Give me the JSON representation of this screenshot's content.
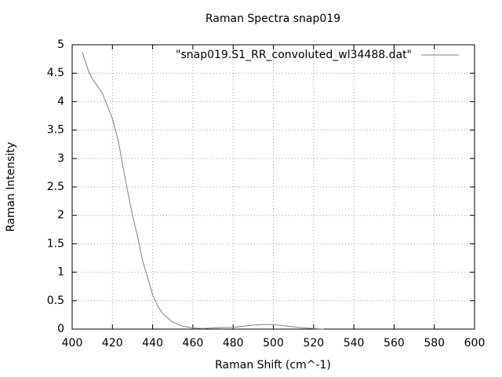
{
  "chart_data": {
    "type": "line",
    "title": "Raman Spectra snap019",
    "x_label": "Raman Shift (cm^-1)",
    "y_label": "Raman Intensity",
    "legend": "top-right",
    "grid": true,
    "xlim": [
      400,
      600
    ],
    "xticks": [
      400,
      420,
      440,
      460,
      480,
      500,
      520,
      540,
      560,
      580,
      600
    ],
    "ylim": [
      0,
      5
    ],
    "yticks": [
      0,
      0.5,
      1,
      1.5,
      2,
      2.5,
      3,
      3.5,
      4,
      4.5,
      5
    ],
    "x": [
      405,
      408,
      410,
      415,
      420,
      423,
      425,
      428,
      430,
      433,
      435,
      438,
      440,
      443,
      445,
      450,
      455,
      460,
      465,
      470,
      475,
      480,
      485,
      490,
      495,
      500,
      505,
      510,
      515,
      520,
      525
    ],
    "series": [
      {
        "name": "\"snap019.S1_RR_convoluted_wl34488.dat\"",
        "color": "#808080",
        "values": [
          4.87,
          4.55,
          4.4,
          4.15,
          3.7,
          3.3,
          2.9,
          2.35,
          2.0,
          1.55,
          1.2,
          0.85,
          0.6,
          0.38,
          0.27,
          0.12,
          0.05,
          0.02,
          0.01,
          0.02,
          0.03,
          0.03,
          0.05,
          0.07,
          0.08,
          0.08,
          0.06,
          0.04,
          0.02,
          0.01,
          0.0
        ]
      }
    ]
  }
}
